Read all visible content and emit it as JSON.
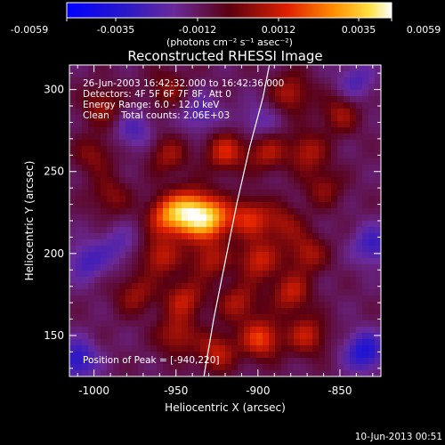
{
  "colorbar": {
    "ticks": [
      "-0.0059",
      "-0.0035",
      "-0.0012",
      "0.0012",
      "0.0035",
      "0.0059"
    ],
    "unit_label": "(photons cm⁻² s⁻¹ asec⁻²)",
    "range": [
      -0.0059,
      0.0059
    ]
  },
  "chart_data": {
    "type": "heatmap",
    "title": "Reconstructed RHESSI Image",
    "xlabel": "Heliocentric X (arcsec)",
    "ylabel": "Heliocentric Y (arcsec)",
    "xlim": [
      -1015,
      -825
    ],
    "ylim": [
      125,
      315
    ],
    "x_ticks": [
      "-1000",
      "-950",
      "-900",
      "-850"
    ],
    "x_tick_values": [
      -1000,
      -950,
      -900,
      -850
    ],
    "y_ticks": [
      "150",
      "200",
      "250",
      "300"
    ],
    "y_tick_values": [
      150,
      200,
      250,
      300
    ],
    "annotations": [
      "26-Jun-2003 16:42:32.000 to 16:42:36.000",
      "Detectors: 4F 5F 6F 7F 8F, Att 0",
      "Energy Range: 6.0 - 12.0 keV",
      "Clean    Total counts: 2.06E+03"
    ],
    "peak_label": "Position of Peak = [-940,220]",
    "peak": [
      -940,
      220
    ],
    "sources": [
      {
        "x": -940,
        "y": 224,
        "amp": 1.0
      },
      {
        "x": -926,
        "y": 221,
        "amp": 0.55
      },
      {
        "x": -956,
        "y": 223,
        "amp": 0.55
      },
      {
        "x": -905,
        "y": 222,
        "amp": 0.5
      },
      {
        "x": -885,
        "y": 218,
        "amp": 0.35
      },
      {
        "x": -955,
        "y": 260,
        "amp": 0.35
      },
      {
        "x": -920,
        "y": 262,
        "amp": 0.5
      },
      {
        "x": -895,
        "y": 262,
        "amp": 0.4
      },
      {
        "x": -870,
        "y": 262,
        "amp": 0.4
      },
      {
        "x": -995,
        "y": 290,
        "amp": 0.35
      },
      {
        "x": -955,
        "y": 300,
        "amp": 0.3
      },
      {
        "x": -880,
        "y": 298,
        "amp": 0.4
      },
      {
        "x": -850,
        "y": 285,
        "amp": 0.35
      },
      {
        "x": -1000,
        "y": 260,
        "amp": 0.3
      },
      {
        "x": -990,
        "y": 235,
        "amp": 0.3
      },
      {
        "x": -960,
        "y": 198,
        "amp": 0.45
      },
      {
        "x": -930,
        "y": 196,
        "amp": 0.4
      },
      {
        "x": -900,
        "y": 196,
        "amp": 0.5
      },
      {
        "x": -870,
        "y": 200,
        "amp": 0.4
      },
      {
        "x": -975,
        "y": 175,
        "amp": 0.35
      },
      {
        "x": -945,
        "y": 172,
        "amp": 0.45
      },
      {
        "x": -912,
        "y": 170,
        "amp": 0.4
      },
      {
        "x": -880,
        "y": 176,
        "amp": 0.45
      },
      {
        "x": -950,
        "y": 150,
        "amp": 0.4
      },
      {
        "x": -925,
        "y": 140,
        "amp": 0.45
      },
      {
        "x": -898,
        "y": 148,
        "amp": 0.6
      },
      {
        "x": -870,
        "y": 150,
        "amp": 0.45
      },
      {
        "x": -860,
        "y": 240,
        "amp": 0.3
      },
      {
        "x": -1010,
        "y": 135,
        "amp": -0.5
      },
      {
        "x": -835,
        "y": 140,
        "amp": -0.55
      },
      {
        "x": -830,
        "y": 205,
        "amp": -0.4
      },
      {
        "x": -1005,
        "y": 195,
        "amp": -0.35
      },
      {
        "x": -975,
        "y": 275,
        "amp": -0.3
      },
      {
        "x": -935,
        "y": 285,
        "amp": -0.3
      },
      {
        "x": -900,
        "y": 280,
        "amp": -0.25
      },
      {
        "x": -840,
        "y": 305,
        "amp": -0.3
      },
      {
        "x": -985,
        "y": 205,
        "amp": -0.25
      }
    ],
    "limb_curve": [
      [
        -933,
        125
      ],
      [
        -927,
        160
      ],
      [
        -920,
        195
      ],
      [
        -913,
        230
      ],
      [
        -905,
        265
      ],
      [
        -897,
        295
      ],
      [
        -893,
        315
      ]
    ]
  },
  "footer": {
    "timestamp": "10-Jun-2013 00:51"
  }
}
